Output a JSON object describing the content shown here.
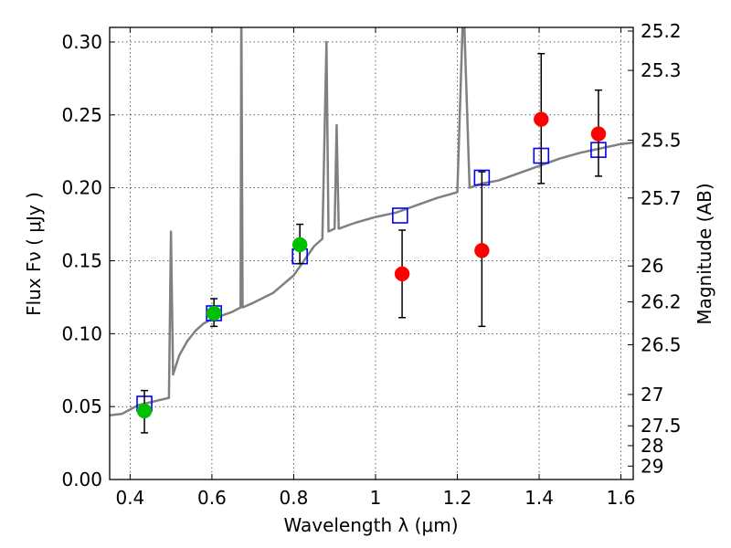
{
  "chart_data": {
    "type": "scatter",
    "xlabel": "Wavelength  λ (μm)",
    "ylabel": "Flux  Fν  ( μJy )",
    "ylabel_right": "Magnitude (AB)",
    "xlim": [
      0.35,
      1.63
    ],
    "ylim": [
      0.0,
      0.31
    ],
    "grid": true,
    "x_ticks": [
      {
        "value": 0.4,
        "label": "0.4"
      },
      {
        "value": 0.6,
        "label": "0.6"
      },
      {
        "value": 0.8,
        "label": "0.8"
      },
      {
        "value": 1.0,
        "label": "1"
      },
      {
        "value": 1.2,
        "label": "1.2"
      },
      {
        "value": 1.4,
        "label": "1.4"
      },
      {
        "value": 1.6,
        "label": "1.6"
      }
    ],
    "y_ticks": [
      {
        "value": 0.0,
        "label": "0.00"
      },
      {
        "value": 0.05,
        "label": "0.05"
      },
      {
        "value": 0.1,
        "label": "0.10"
      },
      {
        "value": 0.15,
        "label": "0.15"
      },
      {
        "value": 0.2,
        "label": "0.20"
      },
      {
        "value": 0.25,
        "label": "0.25"
      },
      {
        "value": 0.3,
        "label": "0.30"
      }
    ],
    "right_ticks": [
      {
        "label": "25.2",
        "flux": 0.3075
      },
      {
        "label": "25.3",
        "flux": 0.2805
      },
      {
        "label": "25.5",
        "flux": 0.2327
      },
      {
        "label": "25.7",
        "flux": 0.193
      },
      {
        "label": "26",
        "flux": 0.1464
      },
      {
        "label": "26.2",
        "flux": 0.1218
      },
      {
        "label": "26.5",
        "flux": 0.0924
      },
      {
        "label": "27",
        "flux": 0.0583
      },
      {
        "label": "27.5",
        "flux": 0.0368
      },
      {
        "label": "28",
        "flux": 0.0232
      },
      {
        "label": "29",
        "flux": 0.0092
      }
    ],
    "series": [
      {
        "marker": "line",
        "color": "#808080",
        "points": [
          [
            0.35,
            0.044
          ],
          [
            0.38,
            0.045
          ],
          [
            0.4,
            0.048
          ],
          [
            0.42,
            0.051
          ],
          [
            0.45,
            0.053
          ],
          [
            0.48,
            0.055
          ],
          [
            0.495,
            0.056
          ],
          [
            0.5,
            0.17
          ],
          [
            0.505,
            0.072
          ],
          [
            0.52,
            0.085
          ],
          [
            0.54,
            0.095
          ],
          [
            0.56,
            0.102
          ],
          [
            0.58,
            0.107
          ],
          [
            0.6,
            0.11
          ],
          [
            0.62,
            0.112
          ],
          [
            0.65,
            0.115
          ],
          [
            0.67,
            0.118
          ],
          [
            0.672,
            0.33
          ],
          [
            0.675,
            0.118
          ],
          [
            0.7,
            0.121
          ],
          [
            0.75,
            0.128
          ],
          [
            0.8,
            0.14
          ],
          [
            0.85,
            0.16
          ],
          [
            0.87,
            0.165
          ],
          [
            0.88,
            0.3
          ],
          [
            0.885,
            0.17
          ],
          [
            0.9,
            0.172
          ],
          [
            0.905,
            0.243
          ],
          [
            0.91,
            0.172
          ],
          [
            0.95,
            0.176
          ],
          [
            1.0,
            0.18
          ],
          [
            1.05,
            0.183
          ],
          [
            1.1,
            0.188
          ],
          [
            1.15,
            0.193
          ],
          [
            1.2,
            0.197
          ],
          [
            1.215,
            0.33
          ],
          [
            1.23,
            0.2
          ],
          [
            1.26,
            0.203
          ],
          [
            1.3,
            0.205
          ],
          [
            1.35,
            0.21
          ],
          [
            1.4,
            0.215
          ],
          [
            1.45,
            0.22
          ],
          [
            1.5,
            0.224
          ],
          [
            1.55,
            0.227
          ],
          [
            1.6,
            0.23
          ],
          [
            1.63,
            0.231
          ]
        ]
      },
      {
        "marker": "square-open",
        "color": "#0000ff",
        "points": [
          [
            0.435,
            0.052
          ],
          [
            0.605,
            0.114
          ],
          [
            0.815,
            0.153
          ],
          [
            1.06,
            0.181
          ],
          [
            1.26,
            0.207
          ],
          [
            1.405,
            0.222
          ],
          [
            1.545,
            0.226
          ]
        ]
      },
      {
        "marker": "circle",
        "color": "#00c000",
        "points": [
          {
            "x": 0.435,
            "y": 0.047,
            "err": [
              0.032,
              0.061
            ]
          },
          {
            "x": 0.605,
            "y": 0.114,
            "err": [
              0.105,
              0.124
            ]
          },
          {
            "x": 0.815,
            "y": 0.161,
            "err": [
              0.148,
              0.175
            ]
          }
        ]
      },
      {
        "marker": "circle",
        "color": "#ff0000",
        "points": [
          {
            "x": 1.065,
            "y": 0.141,
            "err": [
              0.111,
              0.171
            ]
          },
          {
            "x": 1.26,
            "y": 0.157,
            "err": [
              0.105,
              0.211
            ]
          },
          {
            "x": 1.405,
            "y": 0.247,
            "err": [
              0.203,
              0.292
            ]
          },
          {
            "x": 1.545,
            "y": 0.237,
            "err": [
              0.208,
              0.267
            ]
          }
        ]
      }
    ]
  }
}
